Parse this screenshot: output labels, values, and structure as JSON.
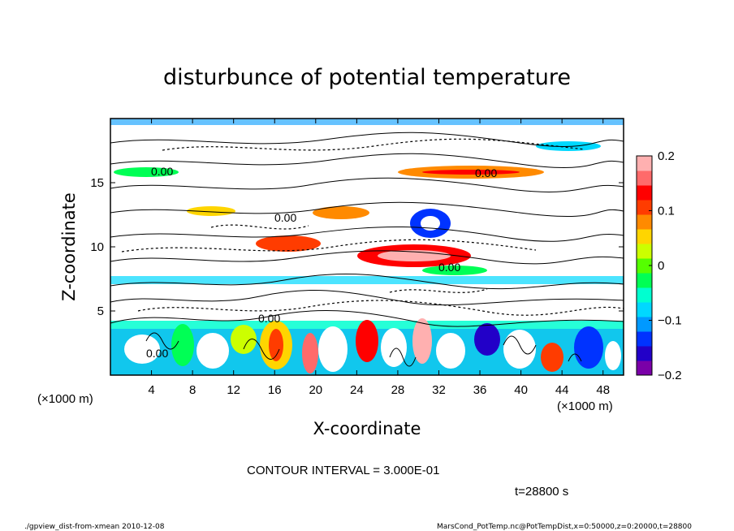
{
  "chart_data": {
    "type": "heatmap",
    "title": "disturbunce of potential temperature",
    "xlabel": "X-coordinate",
    "ylabel": "Z-coordinate",
    "x_unit": "(×1000 m)",
    "y_unit": "(×1000 m)",
    "x_ticks": [
      4,
      8,
      12,
      16,
      20,
      24,
      28,
      32,
      36,
      40,
      44,
      48
    ],
    "y_ticks": [
      5,
      10,
      15
    ],
    "xlim": [
      0,
      50
    ],
    "ylim": [
      0,
      20
    ],
    "colorbar": {
      "min": -0.2,
      "max": 0.2,
      "tick_values": [
        0.2,
        0.1,
        0,
        -0.1,
        -0.2
      ],
      "tick_labels": [
        "0.2",
        "0.1",
        "0",
        "−0.1",
        "−0.2"
      ],
      "colors": [
        "#7a00a8",
        "#2200c8",
        "#0033ff",
        "#0099ff",
        "#00d8ff",
        "#00ffd0",
        "#00ff55",
        "#55ff00",
        "#ccff00",
        "#ffd500",
        "#ff8a00",
        "#ff3c00",
        "#ff0000",
        "#ff6a6a",
        "#ffb0b0"
      ]
    },
    "contour_labels": [
      "0.00",
      "0.00",
      "0.00",
      "0.00",
      "0.00",
      "0.00"
    ],
    "contour_interval_text": "CONTOUR INTERVAL = 3.000E-01",
    "time_text": "t=28800 s",
    "footer_left": "./gpview_dist-from-xmean  2010-12-08",
    "footer_right": "MarsCond_PotTemp.nc@PotTempDist,x=0:50000,z=0:20000,t=28800"
  }
}
